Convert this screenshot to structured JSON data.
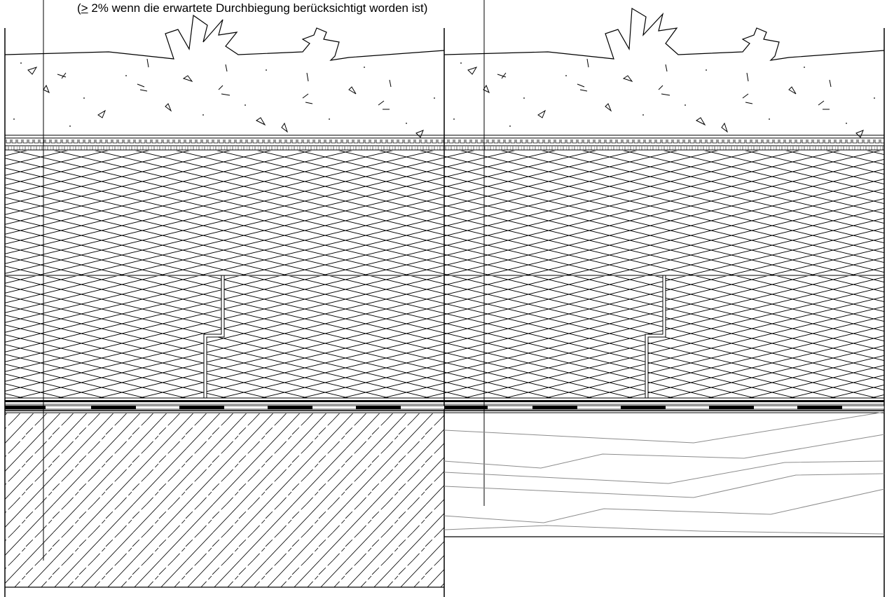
{
  "annotation": {
    "open": "(",
    "symbol": ">",
    "text": " 2% wenn die erwartete Durchbiegung berücksichtigt worden ist)"
  },
  "colors": {
    "line": "#000000",
    "wood_grain": "#8c8c8c",
    "background": "#ffffff"
  },
  "left_section": {
    "layers": [
      "gravel-soil-fill",
      "drainage-mat",
      "insulation-upper",
      "insulation-lower-stepped",
      "membrane",
      "concrete-slab"
    ]
  },
  "right_section": {
    "layers": [
      "gravel-soil-fill",
      "drainage-mat",
      "insulation-upper",
      "insulation-lower-stepped",
      "membrane",
      "timber-deck"
    ]
  }
}
